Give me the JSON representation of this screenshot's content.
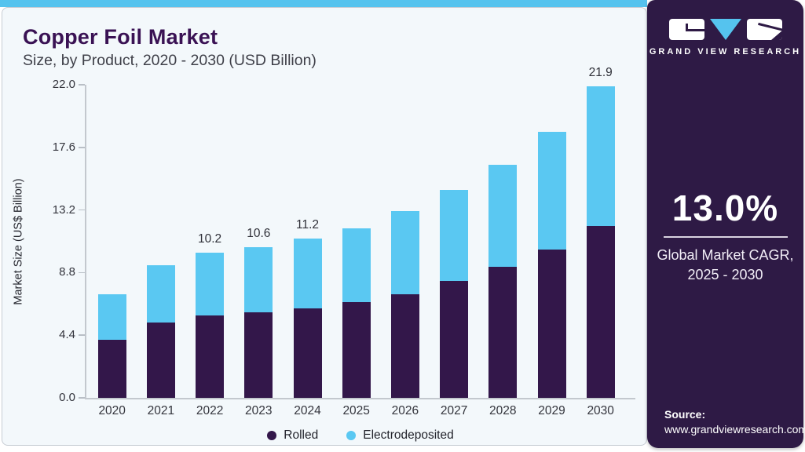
{
  "header": {
    "title": "Copper Foil Market",
    "subtitle": "Size, by Product, 2020 - 2030 (USD Billion)"
  },
  "chart_data": {
    "type": "bar",
    "stacked": true,
    "title": "Copper Foil Market Size, by Product, 2020 - 2030 (USD Billion)",
    "categories": [
      "2020",
      "2021",
      "2022",
      "2023",
      "2024",
      "2025",
      "2026",
      "2027",
      "2028",
      "2029",
      "2030"
    ],
    "series": [
      {
        "name": "Rolled",
        "color": "#33174a",
        "values": [
          4.1,
          5.3,
          5.8,
          6.0,
          6.3,
          6.7,
          7.3,
          8.2,
          9.2,
          10.4,
          12.1
        ]
      },
      {
        "name": "Electrodeposited",
        "color": "#5ac8f2",
        "values": [
          3.2,
          4.0,
          4.4,
          4.6,
          4.9,
          5.2,
          5.8,
          6.4,
          7.2,
          8.3,
          9.8
        ]
      }
    ],
    "totals": [
      7.3,
      9.3,
      10.2,
      10.6,
      11.2,
      11.9,
      13.1,
      14.6,
      16.4,
      18.7,
      21.9
    ],
    "total_labels": {
      "2022": "10.2",
      "2023": "10.6",
      "2024": "11.2",
      "2030": "21.9"
    },
    "xlabel": "",
    "ylabel": "Market Size (US$ Billion)",
    "yticks": [
      "0.0",
      "4.4",
      "8.8",
      "13.2",
      "17.6",
      "22.0"
    ],
    "ylim": [
      0,
      22.0
    ],
    "grid": false,
    "legend_position": "bottom",
    "legend": [
      "Rolled",
      "Electrodeposited"
    ]
  },
  "sidebar": {
    "brand": "GRAND VIEW RESEARCH",
    "cagr_value": "13.0%",
    "cagr_label_line1": "Global Market CAGR,",
    "cagr_label_line2": "2025 - 2030",
    "source_label": "Source:",
    "source_url": "www.grandviewresearch.com"
  },
  "colors": {
    "accent_strip": "#55c3ee",
    "panel_background": "#f3f8fb",
    "panel_border": "#c7cdd4",
    "sidebar_background": "#2e1a45",
    "title_text": "#3a1254",
    "rolled_bar": "#33174a",
    "electrodeposited_bar": "#5ac8f2",
    "axis_line": "#c3c8ce"
  }
}
